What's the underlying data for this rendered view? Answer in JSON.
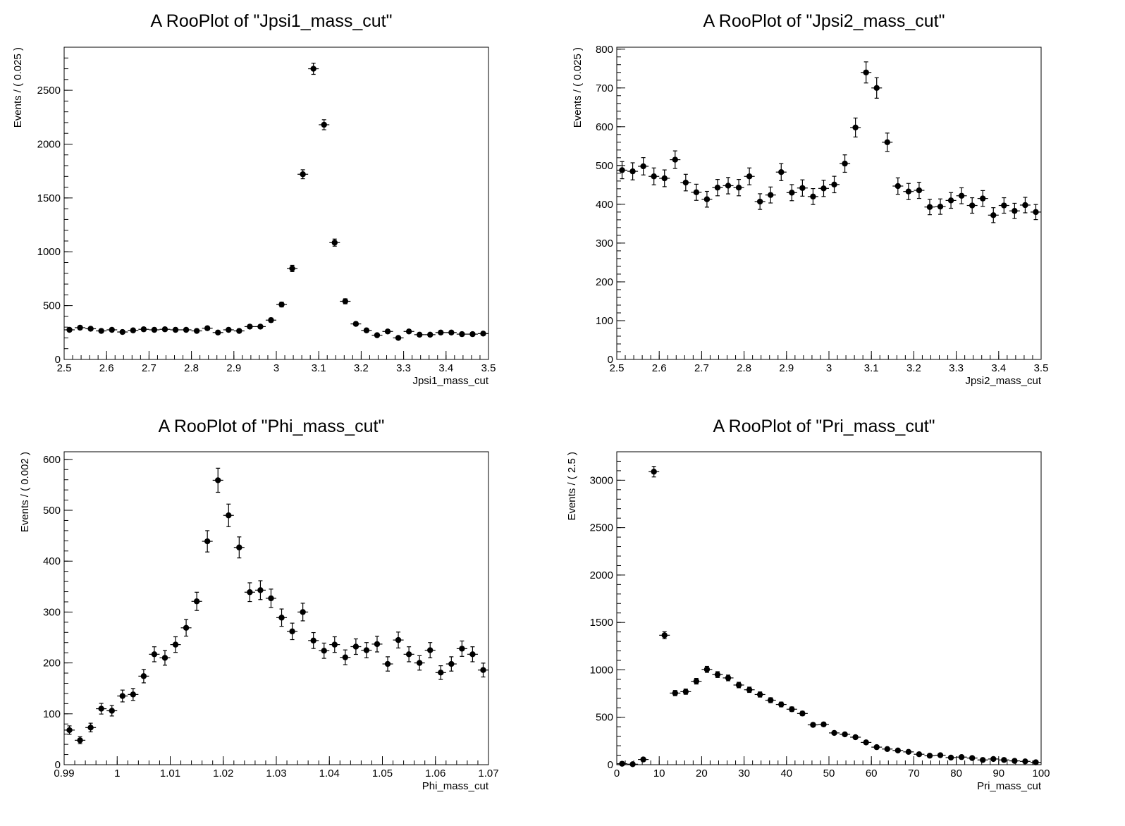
{
  "chart_data": [
    {
      "type": "scatter",
      "title": "A RooPlot of \"Jpsi1_mass_cut\"",
      "xlabel": "Jpsi1_mass_cut",
      "ylabel": "Events / ( 0.025 )",
      "xlim": [
        2.5,
        3.5
      ],
      "ylim": [
        0,
        2900
      ],
      "x_ticks": [
        2.5,
        2.6,
        2.7,
        2.8,
        2.9,
        3,
        3.1,
        3.2,
        3.3,
        3.4,
        3.5
      ],
      "x_tick_labels": [
        "2.5",
        "2.6",
        "2.7",
        "2.8",
        "2.9",
        "3",
        "3.1",
        "3.2",
        "3.3",
        "3.4",
        "3.5"
      ],
      "y_ticks": [
        0,
        500,
        1000,
        1500,
        2000,
        2500
      ],
      "y_tick_labels": [
        "0",
        "500",
        "1000",
        "1500",
        "2000",
        "2500"
      ],
      "x_minor_step": 0.02,
      "y_minor_step": 100,
      "bin_width": 0.025,
      "series": [
        {
          "x": [
            2.5125,
            2.5375,
            2.5625,
            2.5875,
            2.6125,
            2.6375,
            2.6625,
            2.6875,
            2.7125,
            2.7375,
            2.7625,
            2.7875,
            2.8125,
            2.8375,
            2.8625,
            2.8875,
            2.9125,
            2.9375,
            2.9625,
            2.9875,
            3.0125,
            3.0375,
            3.0625,
            3.0875,
            3.1125,
            3.1375,
            3.1625,
            3.1875,
            3.2125,
            3.2375,
            3.2625,
            3.2875,
            3.3125,
            3.3375,
            3.3625,
            3.3875,
            3.4125,
            3.4375,
            3.4625,
            3.4875
          ],
          "y": [
            275,
            295,
            285,
            265,
            275,
            255,
            270,
            280,
            275,
            280,
            275,
            275,
            265,
            290,
            250,
            275,
            265,
            305,
            305,
            365,
            510,
            845,
            1720,
            2700,
            2180,
            1085,
            540,
            330,
            270,
            225,
            260,
            200,
            260,
            230,
            230,
            250,
            250,
            235,
            235,
            240
          ]
        }
      ]
    },
    {
      "type": "scatter",
      "title": "A RooPlot of \"Jpsi2_mass_cut\"",
      "xlabel": "Jpsi2_mass_cut",
      "ylabel": "Events / ( 0.025 )",
      "xlim": [
        2.5,
        3.5
      ],
      "ylim": [
        0,
        805
      ],
      "x_ticks": [
        2.5,
        2.6,
        2.7,
        2.8,
        2.9,
        3,
        3.1,
        3.2,
        3.3,
        3.4,
        3.5
      ],
      "x_tick_labels": [
        "2.5",
        "2.6",
        "2.7",
        "2.8",
        "2.9",
        "3",
        "3.1",
        "3.2",
        "3.3",
        "3.4",
        "3.5"
      ],
      "y_ticks": [
        0,
        100,
        200,
        300,
        400,
        500,
        600,
        700,
        800
      ],
      "y_tick_labels": [
        "0",
        "100",
        "200",
        "300",
        "400",
        "500",
        "600",
        "700",
        "800"
      ],
      "x_minor_step": 0.02,
      "y_minor_step": 20,
      "bin_width": 0.025,
      "series": [
        {
          "x": [
            2.5125,
            2.5375,
            2.5625,
            2.5875,
            2.6125,
            2.6375,
            2.6625,
            2.6875,
            2.7125,
            2.7375,
            2.7625,
            2.7875,
            2.8125,
            2.8375,
            2.8625,
            2.8875,
            2.9125,
            2.9375,
            2.9625,
            2.9875,
            3.0125,
            3.0375,
            3.0625,
            3.0875,
            3.1125,
            3.1375,
            3.1625,
            3.1875,
            3.2125,
            3.2375,
            3.2625,
            3.2875,
            3.3125,
            3.3375,
            3.3625,
            3.3875,
            3.4125,
            3.4375,
            3.4625,
            3.4875
          ],
          "y": [
            488,
            485,
            498,
            472,
            467,
            515,
            456,
            431,
            413,
            443,
            448,
            443,
            472,
            407,
            424,
            483,
            430,
            442,
            420,
            441,
            451,
            505,
            598,
            740,
            700,
            560,
            447,
            433,
            436,
            393,
            394,
            410,
            422,
            397,
            415,
            372,
            397,
            383,
            398,
            380
          ]
        }
      ]
    },
    {
      "type": "scatter",
      "title": "A RooPlot of \"Phi_mass_cut\"",
      "xlabel": "Phi_mass_cut",
      "ylabel": "Events / ( 0.002 )",
      "xlim": [
        0.99,
        1.07
      ],
      "ylim": [
        0,
        615
      ],
      "x_ticks": [
        0.99,
        1,
        1.01,
        1.02,
        1.03,
        1.04,
        1.05,
        1.06,
        1.07
      ],
      "x_tick_labels": [
        "0.99",
        "1",
        "1.01",
        "1.02",
        "1.03",
        "1.04",
        "1.05",
        "1.06",
        "1.07"
      ],
      "y_ticks": [
        0,
        100,
        200,
        300,
        400,
        500,
        600
      ],
      "y_tick_labels": [
        "0",
        "100",
        "200",
        "300",
        "400",
        "500",
        "600"
      ],
      "x_minor_step": 0.002,
      "y_minor_step": 20,
      "bin_width": 0.002,
      "series": [
        {
          "x": [
            0.991,
            0.993,
            0.995,
            0.997,
            0.999,
            1.001,
            1.003,
            1.005,
            1.007,
            1.009,
            1.011,
            1.013,
            1.015,
            1.017,
            1.019,
            1.021,
            1.023,
            1.025,
            1.027,
            1.029,
            1.031,
            1.033,
            1.035,
            1.037,
            1.039,
            1.041,
            1.043,
            1.045,
            1.047,
            1.049,
            1.051,
            1.053,
            1.055,
            1.057,
            1.059,
            1.061,
            1.063,
            1.065,
            1.067,
            1.069
          ],
          "y": [
            68,
            48,
            73,
            110,
            106,
            135,
            138,
            174,
            217,
            210,
            236,
            269,
            321,
            439,
            559,
            490,
            427,
            339,
            343,
            327,
            289,
            262,
            300,
            244,
            224,
            236,
            211,
            232,
            225,
            237,
            198,
            245,
            217,
            200,
            225,
            181,
            198,
            228,
            217,
            186
          ]
        }
      ]
    },
    {
      "type": "scatter",
      "title": "A RooPlot of \"Pri_mass_cut\"",
      "xlabel": "Pri_mass_cut",
      "ylabel": "Events / ( 2.5 )",
      "xlim": [
        0,
        100
      ],
      "ylim": [
        0,
        3300
      ],
      "x_ticks": [
        0,
        10,
        20,
        30,
        40,
        50,
        60,
        70,
        80,
        90,
        100
      ],
      "x_tick_labels": [
        "0",
        "10",
        "20",
        "30",
        "40",
        "50",
        "60",
        "70",
        "80",
        "90",
        "100"
      ],
      "y_ticks": [
        0,
        500,
        1000,
        1500,
        2000,
        2500,
        3000
      ],
      "y_tick_labels": [
        "0",
        "500",
        "1000",
        "1500",
        "2000",
        "2500",
        "3000"
      ],
      "x_minor_step": 2,
      "y_minor_step": 100,
      "bin_width": 2.5,
      "series": [
        {
          "x": [
            1.25,
            3.75,
            6.25,
            8.75,
            11.25,
            13.75,
            16.25,
            18.75,
            21.25,
            23.75,
            26.25,
            28.75,
            31.25,
            33.75,
            36.25,
            38.75,
            41.25,
            43.75,
            46.25,
            48.75,
            51.25,
            53.75,
            56.25,
            58.75,
            61.25,
            63.75,
            66.25,
            68.75,
            71.25,
            73.75,
            76.25,
            78.75,
            81.25,
            83.75,
            86.25,
            88.75,
            91.25,
            93.75,
            96.25,
            98.75
          ],
          "y": [
            10,
            5,
            55,
            3090,
            1365,
            755,
            770,
            880,
            1005,
            950,
            915,
            840,
            790,
            740,
            680,
            635,
            585,
            540,
            420,
            425,
            335,
            320,
            290,
            235,
            185,
            165,
            150,
            135,
            110,
            95,
            100,
            75,
            80,
            70,
            50,
            60,
            50,
            40,
            35,
            25
          ]
        }
      ]
    }
  ]
}
